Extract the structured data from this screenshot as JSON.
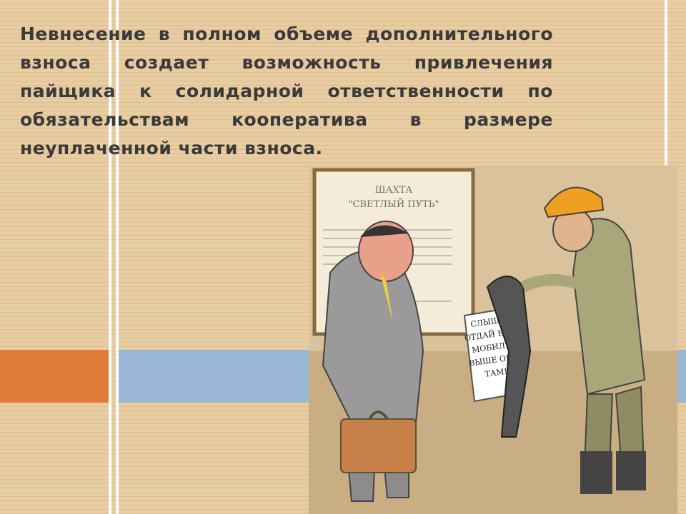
{
  "slide": {
    "paragraph": "Невнесение в полном объеме дополнительного взноса создает возможность привлечения пайщика к солидарной ответственности по обязательствам кооператива в размере неуплаченной части взноса."
  },
  "illustration": {
    "poster_title": "ШАХТА",
    "poster_subtitle": "\"СВЕТЛЫЙ ПУТЬ\"",
    "sign_lines": [
      "СЛЫШЬ,",
      "ОТДАЙ ЕМУ",
      "МОБИЛУ,",
      "ВЫШЕ ОНИ",
      "ТАМ!"
    ]
  }
}
